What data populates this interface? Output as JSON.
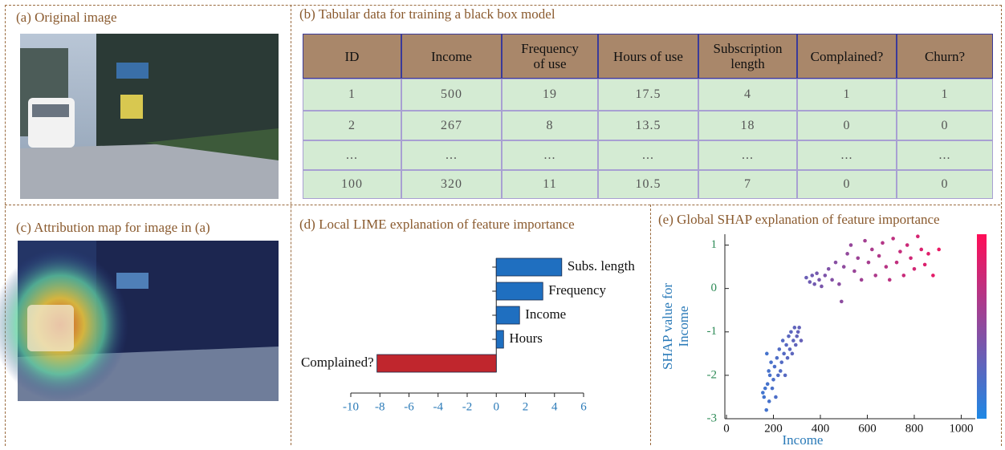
{
  "panels": {
    "a": "(a) Original image",
    "b": "(b) Tabular data for training a black box model",
    "c": "(c) Attribution map for image in (a)"
  },
  "table": {
    "header": [
      [
        "ID"
      ],
      [
        "Income"
      ],
      [
        "Frequency",
        "of use"
      ],
      [
        "Hours of use"
      ],
      [
        "Subscription",
        "length"
      ],
      [
        "Complained?"
      ],
      [
        "Churn?"
      ]
    ],
    "rows": [
      [
        "1",
        "500",
        "19",
        "17.5",
        "4",
        "1",
        "1"
      ],
      [
        "2",
        "267",
        "8",
        "13.5",
        "18",
        "0",
        "0"
      ],
      [
        "...",
        "...",
        "...",
        "...",
        "...",
        "...",
        "..."
      ],
      [
        "100",
        "320",
        "11",
        "10.5",
        "7",
        "0",
        "0"
      ]
    ]
  },
  "chart_data": [
    {
      "type": "bar",
      "orientation": "horizontal",
      "title": "(d) Local LIME explanation of feature importance",
      "categories": [
        "Subs. length",
        "Frequency",
        "Income",
        "Hours",
        "Complained?"
      ],
      "values": [
        4.5,
        3.2,
        1.6,
        0.5,
        -8.2
      ],
      "colors": [
        "#1f6fc0",
        "#1f6fc0",
        "#1f6fc0",
        "#1f6fc0",
        "#c0262d"
      ],
      "xlim": [
        -10,
        6
      ],
      "xticks": [
        -10,
        -8,
        -6,
        -4,
        -2,
        0,
        2,
        4,
        6
      ]
    },
    {
      "type": "scatter",
      "title": "(e) Global SHAP explanation of feature importance",
      "xlabel": "Income",
      "ylabel": [
        "SHAP value for",
        "Income"
      ],
      "x": [
        155,
        160,
        165,
        170,
        172,
        175,
        180,
        182,
        185,
        190,
        195,
        200,
        205,
        210,
        215,
        220,
        225,
        230,
        235,
        240,
        245,
        250,
        255,
        260,
        265,
        270,
        275,
        280,
        285,
        290,
        295,
        300,
        305,
        310,
        318,
        340,
        355,
        365,
        375,
        385,
        395,
        405,
        420,
        435,
        450,
        465,
        480,
        490,
        500,
        515,
        530,
        545,
        560,
        575,
        590,
        605,
        620,
        635,
        650,
        665,
        680,
        695,
        710,
        725,
        740,
        755,
        770,
        785,
        800,
        815,
        830,
        845,
        860,
        880,
        905
      ],
      "y": [
        -2.4,
        -2.5,
        -2.3,
        -2.8,
        -1.5,
        -2.2,
        -1.9,
        -2.6,
        -2.0,
        -1.7,
        -2.3,
        -2.1,
        -1.8,
        -2.5,
        -1.6,
        -2.0,
        -1.4,
        -1.9,
        -1.7,
        -1.2,
        -1.5,
        -2.0,
        -1.3,
        -1.6,
        -1.1,
        -1.4,
        -1.0,
        -1.5,
        -1.2,
        -0.9,
        -1.3,
        -1.1,
        -1.0,
        -0.9,
        -1.2,
        0.25,
        0.15,
        0.3,
        0.1,
        0.35,
        0.2,
        0.05,
        0.3,
        0.45,
        0.2,
        0.6,
        0.1,
        -0.3,
        0.5,
        0.8,
        1.0,
        0.4,
        0.7,
        0.2,
        1.1,
        0.6,
        0.9,
        0.3,
        0.75,
        1.05,
        0.5,
        0.2,
        1.15,
        0.6,
        0.85,
        0.3,
        1.0,
        0.7,
        0.45,
        1.2,
        0.9,
        0.55,
        0.8,
        0.3,
        0.9
      ],
      "colormap": [
        "#1e88e5",
        "#ff0d57"
      ],
      "clim": [
        0,
        1000
      ],
      "xlim": [
        0,
        1060
      ],
      "xticks": [
        0,
        200,
        400,
        600,
        800,
        1000
      ],
      "ylim": [
        -3,
        1.25
      ],
      "yticks": [
        -3,
        -2,
        -1,
        0,
        1
      ]
    }
  ]
}
